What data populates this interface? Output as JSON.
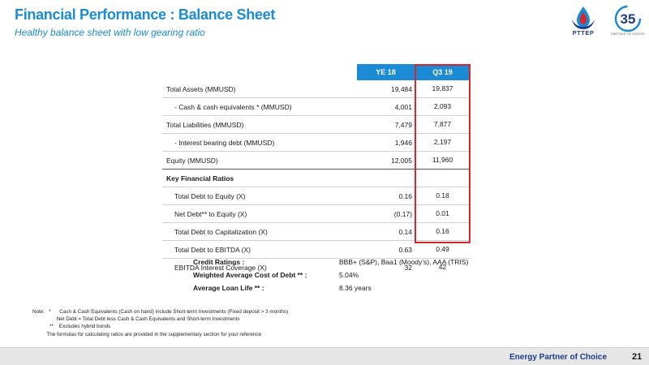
{
  "title": "Financial Performance : Balance Sheet",
  "subtitle": "Healthy balance sheet with low gearing ratio",
  "logo_text": "PTTEP",
  "anniversary_text": "PARTNER OF CHOICE",
  "table": {
    "col1": "YE 18",
    "col2": "Q3 19",
    "rows": [
      {
        "label": "Total Assets (MMUSD)",
        "v1": "19,484",
        "v2": "19,837"
      },
      {
        "label": "- Cash & cash equivalents * (MMUSD)",
        "v1": "4,001",
        "v2": "2,093"
      },
      {
        "label": "Total Liabilities (MMUSD)",
        "v1": "7,479",
        "v2": "7,877"
      },
      {
        "label": "-  Interest bearing debt (MMUSD)",
        "v1": "1,946",
        "v2": "2,197"
      },
      {
        "label": "Equity (MMUSD)",
        "v1": "12,005",
        "v2": "11,960"
      },
      {
        "label": "Key Financial Ratios",
        "v1": "",
        "v2": ""
      },
      {
        "label": "Total Debt to Equity (X)",
        "v1": "0.16",
        "v2": "0.18"
      },
      {
        "label": "Net Debt** to Equity (X)",
        "v1": "(0.17)",
        "v2": "0.01"
      },
      {
        "label": "Total Debt to Capitalization (X)",
        "v1": "0.14",
        "v2": "0.16"
      },
      {
        "label": "Total Debt to EBITDA (X)",
        "v1": "0.63",
        "v2": "0.49"
      },
      {
        "label": "EBITDA Interest Coverage (X)",
        "v1": "32",
        "v2": "42"
      }
    ]
  },
  "credit": [
    {
      "key": "Credit Ratings :",
      "value": "BBB+ (S&P), Baa1 (Moody’s),  AAA (TRIS)"
    },
    {
      "key": "Weighted Average Cost of Debt ** :",
      "value": "5.04%"
    },
    {
      "key": "Average Loan Life ** :",
      "value": "8.36 years"
    }
  ],
  "notes": [
    "Note:   *      Cash & Cash Equivalents (Cash on hand) include Short-term Investments (Fixed deposit > 3 months)",
    "                 Net Debt = Total Debt less Cash & Cash Equivalents and Short-term Investments",
    "            **    Excludes hybrid bonds",
    "          The formulas for calculating ratios are provided in the supplementary section for your reference"
  ],
  "footer": {
    "tagline": "Energy Partner of Choice",
    "page": "21"
  },
  "colors": {
    "accent": "#1b8bd6",
    "highlight_box": "#d9262c",
    "brand_navy": "#1f3c88"
  }
}
